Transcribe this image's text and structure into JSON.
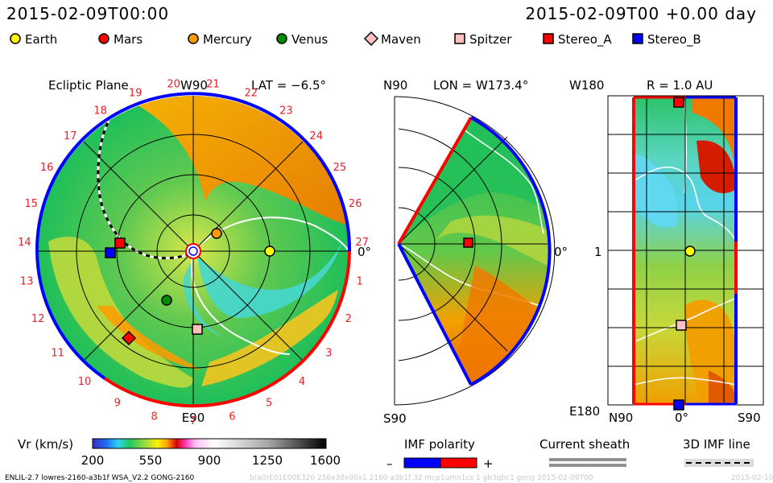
{
  "header": {
    "time_left": "2015-02-09T00:00",
    "time_right": "2015-02-09T00 +0.00 day"
  },
  "legend": {
    "items": [
      {
        "label": "Earth",
        "color": "#ffff00",
        "shape": "circle"
      },
      {
        "label": "Mars",
        "color": "#ff0000",
        "shape": "circle"
      },
      {
        "label": "Mercury",
        "color": "#ff9900",
        "shape": "circle"
      },
      {
        "label": "Venus",
        "color": "#008c00",
        "shape": "circle"
      },
      {
        "label": "Maven",
        "color": "#ffc0c0",
        "shape": "diamond"
      },
      {
        "label": "Spitzer",
        "color": "#ffc0c0",
        "shape": "square"
      },
      {
        "label": "Stereo_A",
        "color": "#ff0000",
        "shape": "square"
      },
      {
        "label": "Stereo_B",
        "color": "#0000ff",
        "shape": "square"
      }
    ]
  },
  "ecliptic_panel": {
    "title": "Ecliptic Plane",
    "lat_label": "LAT = −6.5°",
    "top_label": "W90",
    "bottom_label": "E90",
    "zero_label": "0°",
    "carrington_labels": [
      "19",
      "20",
      "21",
      "22",
      "23",
      "24",
      "25",
      "26",
      "27",
      "1",
      "2",
      "3",
      "4",
      "5",
      "6",
      "7",
      "8",
      "9",
      "10",
      "11",
      "12",
      "13",
      "14",
      "15",
      "16",
      "17",
      "18"
    ]
  },
  "meridional_panel": {
    "lon_label": "LON = W173.4°",
    "top_label": "N90",
    "bottom_label": "S90",
    "zero_label": "0°"
  },
  "radial_panel": {
    "r_label": "R = 1.0 AU",
    "left_top": "W180",
    "left_mid": "1",
    "left_bottom": "E180",
    "bottom_left": "N90",
    "bottom_mid": "0°",
    "bottom_right": "S90"
  },
  "colorbar": {
    "label": "Vr (km/s)",
    "ticks": [
      "200",
      "550",
      "900",
      "1250",
      "1600"
    ]
  },
  "imf": {
    "polarity_label": "IMF polarity",
    "minus": "–",
    "plus": "+",
    "sheath_label": "Current sheath",
    "imf_line_label": "3D IMF line"
  },
  "footer": {
    "model": "ENLIL-2.7 lowres-2160-a3b1f WSA_V2.2 GONG-2160",
    "faint": "b(a0)E01E00E320 256x30x90x1 2160 a3b1f 32 mcp1umn1cs 1 gb3qbc1 gong 2015-02-09T00",
    "faint_right": "2015-02-10"
  },
  "colors": {
    "frame_blue": "#0000ff",
    "frame_red": "#ff0000",
    "accent_red": "#e8202a"
  }
}
